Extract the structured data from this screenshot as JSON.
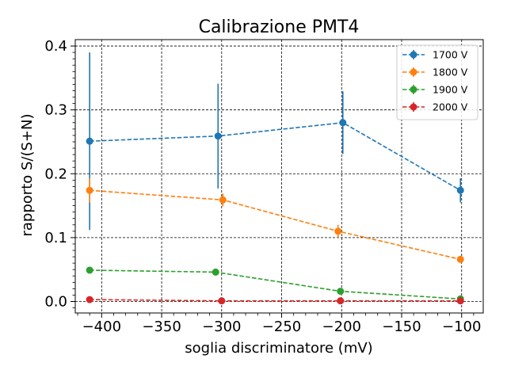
{
  "chart_data": {
    "type": "line",
    "title": "Calibrazione PMT4",
    "xlabel": "soglia discriminatore  (mV)",
    "ylabel": "rapporto S/(S+N)",
    "xlim": [
      -422,
      -82
    ],
    "ylim": [
      -0.018,
      0.41
    ],
    "xticks": [
      -400,
      -350,
      -300,
      -250,
      -200,
      -150,
      -100
    ],
    "xtick_labels": [
      "−400",
      "−350",
      "−300",
      "−250",
      "−200",
      "−150",
      "−100"
    ],
    "yticks": [
      0.0,
      0.1,
      0.2,
      0.3,
      0.4
    ],
    "ytick_labels": [
      "0.0",
      "0.1",
      "0.2",
      "0.3",
      "0.4"
    ],
    "grid": true,
    "legend_position": "top-right",
    "series": [
      {
        "name": "1700 V",
        "color": "#1f77b4",
        "x": [
          -410,
          -303,
          -199,
          -101
        ],
        "y": [
          0.251,
          0.259,
          0.28,
          0.174
        ],
        "yerr": [
          0.139,
          0.082,
          0.049,
          0.019
        ]
      },
      {
        "name": "1800 V",
        "color": "#ff7f0e",
        "x": [
          -410,
          -299,
          -203,
          -101
        ],
        "y": [
          0.174,
          0.159,
          0.11,
          0.066
        ],
        "yerr": [
          0.019,
          0.01,
          0.01,
          0.003
        ]
      },
      {
        "name": "1900 V",
        "color": "#2ca02c",
        "x": [
          -410,
          -305,
          -201,
          -101
        ],
        "y": [
          0.049,
          0.046,
          0.016,
          0.004
        ],
        "yerr": [
          0.002,
          0.002,
          0.002,
          0.001
        ]
      },
      {
        "name": "2000 V",
        "color": "#d62728",
        "x": [
          -410,
          -300,
          -201,
          -101
        ],
        "y": [
          0.003,
          0.001,
          0.001,
          0.001
        ],
        "yerr": [
          0.001,
          0.0005,
          0.0005,
          0.0005
        ]
      }
    ]
  }
}
